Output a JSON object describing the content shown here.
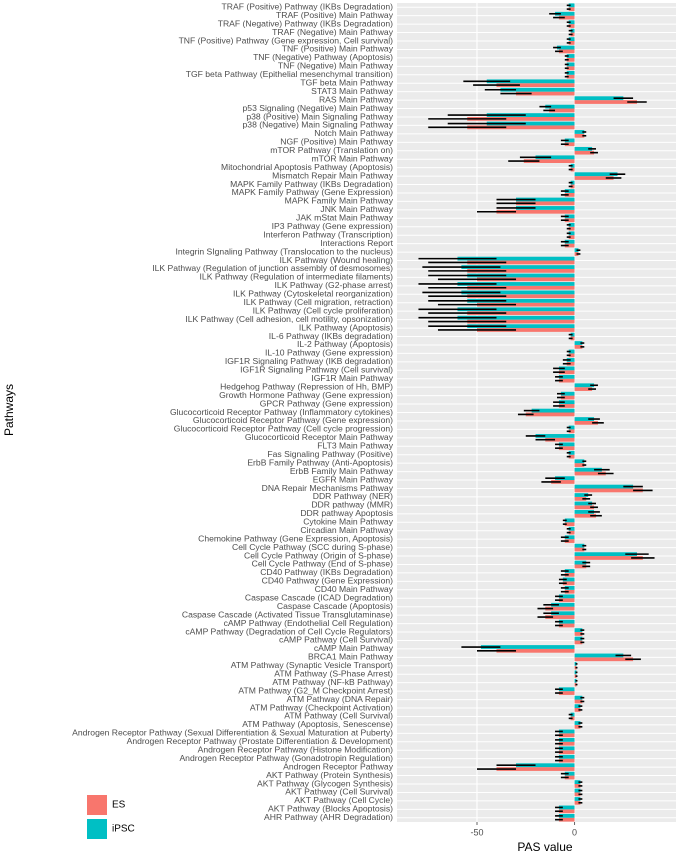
{
  "chart_data": {
    "type": "barh",
    "xlabel": "PAS value",
    "ylabel": "Pathways",
    "xlim": [
      -91,
      52
    ],
    "xticks": [
      -50,
      0
    ],
    "grid": true,
    "legend": "bottom-left",
    "categories": [
      "TRAF (Positive) Pathway (IKBs Degradation)",
      "TRAF (Positive) Main Pathway",
      "TRAF (Negative) Pathway (IKBs Degradation)",
      "TRAF (Negative) Main Pathway",
      "TNF (Positive) Pathway (Gene expression, Cell survival)",
      "TNF (Positive) Main Pathway",
      "TNF (Negative) Pathway (Apoptosis)",
      "TNF (Negative) Main Pathway",
      "TGF beta Pathway (Epithelial mesenchymal transition)",
      "TGF beta Main Pathway",
      "STAT3 Main Pathway",
      "RAS Main Pathway",
      "p53 Signaling (Negative) Main Pathway",
      "p38 (Positive) Main Signaling Pathway",
      "p38 (Negative) Main Signaling Pathway",
      "Notch Main Pathway",
      "NGF (Positive) Main Pathway",
      "mTOR Pathway (Translation on)",
      "mTOR Main Pathway",
      "Mitochondrial Apoptosis Pathway (Apoptosis)",
      "Mismatch Repair Main Pathway",
      "MAPK Family Pathway (IKBs Degradation)",
      "MAPK Family Pathway (Gene Expression)",
      "MAPK Family Main Pathway",
      "JNK Main Pathway",
      "JAK mStat Main Pathway",
      "IP3 Pathway (Gene expression)",
      "Interferon Pathway (Transcription)",
      "Interactions Report",
      "Integrin SIgnaling Pathway (Translocation to the nucleus)",
      "ILK Pathway (Wound healing)",
      "ILK Pathway (Regulation of junction assembly of desmosomes)",
      "ILK Pathway (Regulation of intermediate filaments)",
      "ILK Pathway (G2-phase arrest)",
      "ILK Pathway (Cytoskeletal reorganization)",
      "ILK Pathway (Cell migration, retraction)",
      "ILK Pathway (Cell cycle proliferation)",
      "ILK Pathway (Cell adhesion, cell motility, opsonization)",
      "ILK Pathway (Apoptosis)",
      "IL-6 Pathway (IKBs degradation)",
      "IL-2 Pathway (Apoptosis)",
      "IL-10 Pathway (Gene expression)",
      "IGF1R Signaling Pathway (IKB degradation)",
      "IGF1R Signaling Pathway (Cell survival)",
      "IGF1R Main Pathway",
      "Hedgehog Pathway (Repression of Hh, BMP)",
      "Growth Hormone Pathway (Gene expression)",
      "GPCR Pathway (Gene expression)",
      "Glucocorticoid Receptor Pathway (Inflammatory cytokines)",
      "Glucocorticoid Receptor Pathway (Gene expression)",
      "Glucocorticoid Receptor Pathway (Cell cycle progression)",
      "Glucocorticoid Receptor Main Pathway",
      "FLT3 Main Pathway",
      "Fas Signaling Pathway (Positive)",
      "ErbB Family Pathway (Anti-Apoptosis)",
      "ErbB Family Main Pathway",
      "EGFR Main Pathway",
      "DNA Repair Mechanisms Pathway",
      "DDR Pathway (NER)",
      "DDR pathway (MMR)",
      "DDR pathway Apoptosis",
      "Cytokine Main Pathway",
      "Circadian Main Pathway",
      "Chemokine Pathway (Gene Expression, Apoptosis)",
      "Cell Cycle Pathway (SCC during S-phase)",
      "Cell Cycle Pathway (Origin of S-phase)",
      "Cell Cycle Pathway (End of S-phase)",
      "CD40 Pathway (IKBs Degradation)",
      "CD40 Pathway (Gene Expression)",
      "CD40 Main Pathway",
      "Caspase Cascade (ICAD Degradation)",
      "Caspase Cascade (Apoptosis)",
      "Caspase Cascade (Activated Tissue Transglutaminase)",
      "cAMP Pathway (Endothelial Cell Regulation)",
      "cAMP Pathway (Degradation of Cell Cycle Regulators)",
      "cAMP Pathway (Cell Survival)",
      "cAMP Main Pathway",
      "BRCA1 Main Pathway",
      "ATM Pathway (Synaptic Vesicle Transport)",
      "ATM Pathway (S-Phase Arrest)",
      "ATM Pathway (NF-kB Pathway)",
      "ATM Pathway (G2_M Checkpoint Arrest)",
      "ATM Pathway (DNA Repair)",
      "ATM Pathway (Checkpoint Activation)",
      "ATM Pathway (Cell Survival)",
      "ATM Pathway (Apoptosis, Senescense)",
      "Androgen Receptor Pathway (Sexual Differentiation & Sexual Maturation at Puberty)",
      "Androgen Receptor Pathway (Prostate Differentiation & Development)",
      "Androgen Receptor Pathway (Histone Modification)",
      "Androgen Receptor Pathway (Gonadotropin Regulation)",
      "Androgen Receptor Pathway",
      "AKT Pathway (Protein Synthesis)",
      "AKT Pathway (Glycogen Synthesis)",
      "AKT Pathway (Cell Survival)",
      "AKT Pathway (Cell Cycle)",
      "AKT Pathway (Blocks Apoptosis)",
      "AHR Pathway (AHR Degradation)"
    ],
    "series": [
      {
        "name": "ES",
        "color": "#f8766d",
        "values": [
          -3,
          -8,
          -3,
          -2,
          -3,
          -8,
          -4,
          -4,
          -4,
          -40,
          -30,
          32,
          -13,
          -55,
          -55,
          5,
          -5,
          10,
          -26,
          -2,
          20,
          -2,
          -5,
          -30,
          -40,
          -5,
          -3,
          -3,
          -5,
          2,
          -55,
          -55,
          -50,
          -55,
          -55,
          -50,
          -55,
          -55,
          -50,
          -2,
          4,
          -3,
          -4,
          -8,
          -8,
          9,
          -7,
          -8,
          -25,
          12,
          -3,
          -15,
          -8,
          -3,
          5,
          16,
          -12,
          35,
          6,
          10,
          11,
          -5,
          -3,
          -5,
          5,
          35,
          6,
          -5,
          -6,
          -5,
          -8,
          -15,
          -15,
          -8,
          4,
          4,
          -40,
          30,
          1,
          1,
          1,
          -8,
          4,
          3,
          -2,
          3,
          -8,
          -8,
          -8,
          -8,
          -40,
          -5,
          3,
          3,
          3,
          -8,
          -8
        ],
        "errors": [
          1,
          3,
          1,
          1,
          1,
          2,
          1,
          1,
          1,
          12,
          8,
          5,
          3,
          20,
          20,
          1,
          2,
          2,
          8,
          1,
          4,
          1,
          2,
          10,
          10,
          2,
          1,
          1,
          2,
          1,
          20,
          20,
          20,
          20,
          20,
          20,
          20,
          20,
          20,
          1,
          1,
          1,
          2,
          3,
          2,
          2,
          2,
          3,
          4,
          3,
          1,
          5,
          2,
          1,
          1,
          4,
          5,
          5,
          2,
          2,
          3,
          1,
          1,
          2,
          1,
          6,
          2,
          2,
          2,
          2,
          2,
          4,
          4,
          2,
          1,
          1,
          10,
          4,
          0.5,
          0.5,
          0.5,
          2,
          1,
          1,
          1,
          1,
          2,
          2,
          2,
          2,
          10,
          2,
          1,
          1,
          1,
          2,
          2
        ]
      },
      {
        "name": "iPSC",
        "color": "#00bfc4",
        "values": [
          -3,
          -10,
          -3,
          -2,
          -3,
          -9,
          -4,
          -4,
          -4,
          -45,
          -38,
          25,
          -15,
          -45,
          -45,
          5,
          -5,
          9,
          -20,
          -2,
          22,
          -2,
          -5,
          -30,
          -30,
          -5,
          -3,
          -3,
          -5,
          2,
          -60,
          -58,
          -55,
          -60,
          -58,
          -55,
          -60,
          -60,
          -55,
          -2,
          4,
          -3,
          -4,
          -8,
          -8,
          10,
          -7,
          -8,
          -22,
          10,
          -3,
          -20,
          -8,
          -3,
          5,
          14,
          -10,
          30,
          7,
          9,
          10,
          -5,
          -3,
          -5,
          5,
          32,
          6,
          -5,
          -6,
          -5,
          -8,
          -12,
          -12,
          -8,
          4,
          4,
          -48,
          25,
          1,
          1,
          1,
          -8,
          4,
          3,
          -2,
          3,
          -8,
          -8,
          -8,
          -8,
          -30,
          -5,
          3,
          3,
          3,
          -8,
          -8
        ],
        "errors": [
          1,
          3,
          1,
          1,
          1,
          2,
          1,
          1,
          1,
          12,
          8,
          5,
          3,
          20,
          20,
          1,
          2,
          2,
          8,
          1,
          4,
          1,
          2,
          10,
          10,
          2,
          1,
          1,
          2,
          1,
          20,
          20,
          20,
          20,
          20,
          20,
          20,
          20,
          20,
          1,
          1,
          1,
          2,
          3,
          2,
          2,
          2,
          3,
          4,
          3,
          1,
          5,
          2,
          1,
          1,
          4,
          5,
          5,
          2,
          2,
          3,
          1,
          1,
          2,
          1,
          6,
          2,
          2,
          2,
          2,
          2,
          4,
          4,
          2,
          1,
          1,
          10,
          4,
          0.5,
          0.5,
          0.5,
          2,
          1,
          1,
          1,
          1,
          2,
          2,
          2,
          2,
          10,
          2,
          1,
          1,
          1,
          2,
          2
        ]
      }
    ]
  }
}
